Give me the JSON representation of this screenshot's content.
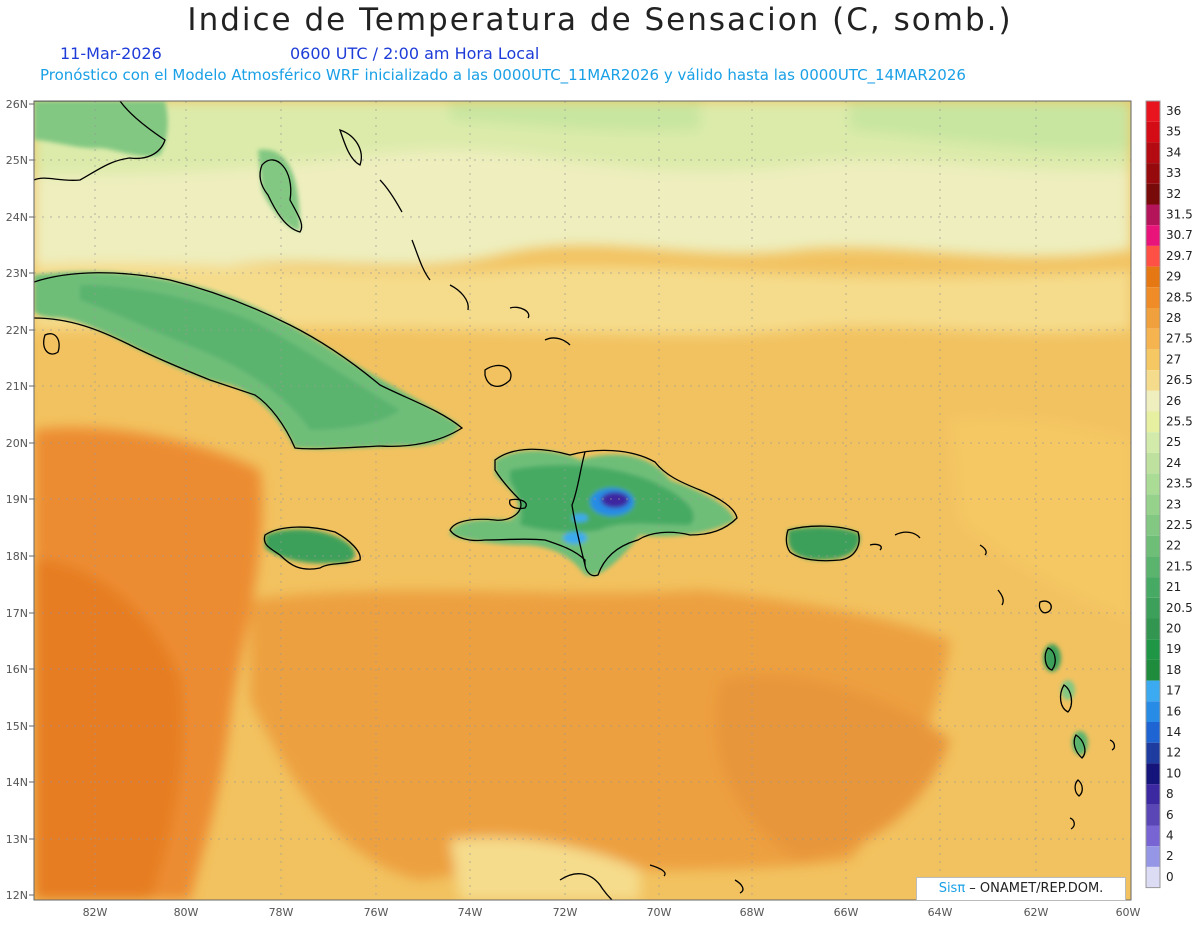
{
  "header": {
    "title": "Indice de Temperatura de Sensacion (C, somb.)",
    "date": "11-Mar-2026",
    "time": "0600 UTC / 2:00 am Hora Local",
    "model_line": "Pronóstico con el Modelo Atmosférico WRF inicializado a las 0000UTC_11MAR2026 y válido hasta las  0000UTC_14MAR2026"
  },
  "lat_labels": [
    "26N",
    "25N",
    "24N",
    "23N",
    "22N",
    "21N",
    "20N",
    "19N",
    "18N",
    "17N",
    "16N",
    "15N",
    "14N",
    "13N",
    "12N"
  ],
  "lon_labels": [
    "82W",
    "80W",
    "78W",
    "76W",
    "74W",
    "72W",
    "70W",
    "68W",
    "66W",
    "64W",
    "62W",
    "60W"
  ],
  "legend": {
    "levels": [
      "36",
      "35",
      "34",
      "33",
      "32",
      "31.5",
      "30.7",
      "29.7",
      "29",
      "28.5",
      "28",
      "27.5",
      "27",
      "26.5",
      "26",
      "25.5",
      "25",
      "24",
      "23.5",
      "23",
      "22.5",
      "22",
      "21.5",
      "21",
      "20.5",
      "20",
      "19",
      "18",
      "17",
      "16",
      "14",
      "12",
      "10",
      "8",
      "6",
      "4",
      "2",
      "0"
    ],
    "colors": [
      "#e8141e",
      "#d40c16",
      "#b40a12",
      "#960a0e",
      "#780a0a",
      "#b4145a",
      "#e8147a",
      "#ff5046",
      "#e67814",
      "#f08c28",
      "#f0a03c",
      "#f5b450",
      "#f5c864",
      "#f5dc8c",
      "#eeeebe",
      "#e6f0a0",
      "#d2ebaa",
      "#bee1a0",
      "#aadc96",
      "#96d28c",
      "#82c882",
      "#6ebe78",
      "#5ab46e",
      "#46aa64",
      "#3ca05a",
      "#329650",
      "#1e9646",
      "#1e8c3c",
      "#3caaf0",
      "#288ce6",
      "#1e64d2",
      "#1e3ca0",
      "#14147a",
      "#3c28a0",
      "#5a46b4",
      "#7864d2",
      "#9696e6",
      "#dcdcf5"
    ]
  },
  "credit": {
    "brand": "Sisπ",
    "text": " – ONAMET/REP.DOM."
  }
}
